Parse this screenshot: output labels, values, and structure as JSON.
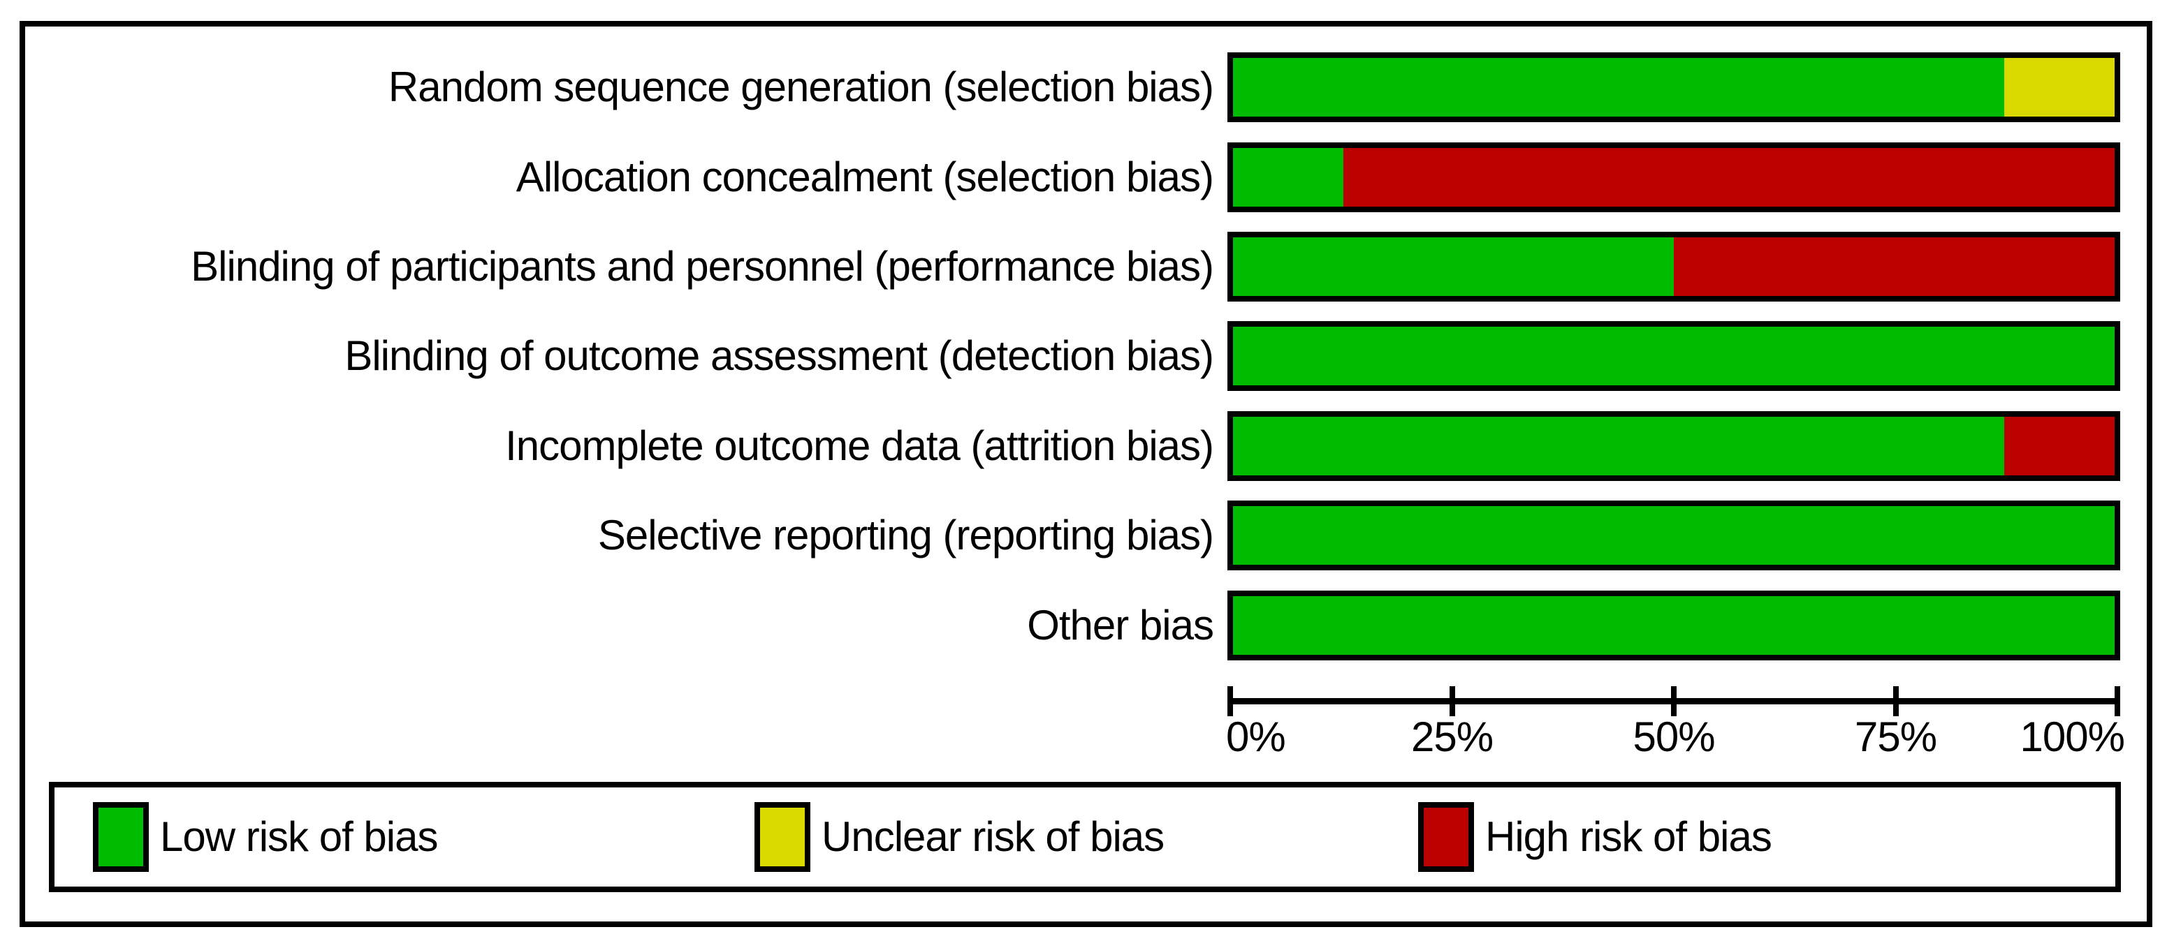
{
  "figure": {
    "kind": "risk-of-bias-graph"
  },
  "chart_data": {
    "type": "bar",
    "orientation": "horizontal",
    "stacked": true,
    "unit": "percent",
    "xlim": [
      0,
      100
    ],
    "x_tick_labels": [
      "0%",
      "25%",
      "50%",
      "75%",
      "100%"
    ],
    "grid": false,
    "legend_position": "bottom",
    "categories": [
      "Random sequence generation (selection bias)",
      "Allocation concealment (selection bias)",
      "Blinding of participants and personnel (performance bias)",
      "Blinding of outcome assessment (detection bias)",
      "Incomplete outcome data (attrition bias)",
      "Selective reporting (reporting bias)",
      "Other bias"
    ],
    "series": [
      {
        "name": "Low risk of bias",
        "color": "#00BC00",
        "values": [
          87.5,
          12.5,
          50,
          100,
          87.5,
          100,
          100
        ]
      },
      {
        "name": "Unclear risk of bias",
        "color": "#D9D900",
        "values": [
          12.5,
          0,
          0,
          0,
          0,
          0,
          0
        ]
      },
      {
        "name": "High risk of bias",
        "color": "#BB0000",
        "values": [
          0,
          87.5,
          50,
          0,
          12.5,
          0,
          0
        ]
      }
    ]
  },
  "legend": {
    "items": [
      {
        "label": "Low risk of bias",
        "color": "#00BC00"
      },
      {
        "label": "Unclear risk of bias",
        "color": "#D9D900"
      },
      {
        "label": "High risk of bias",
        "color": "#BB0000"
      }
    ]
  },
  "colors": {
    "border": "#000000",
    "background": "#FFFFFF"
  }
}
